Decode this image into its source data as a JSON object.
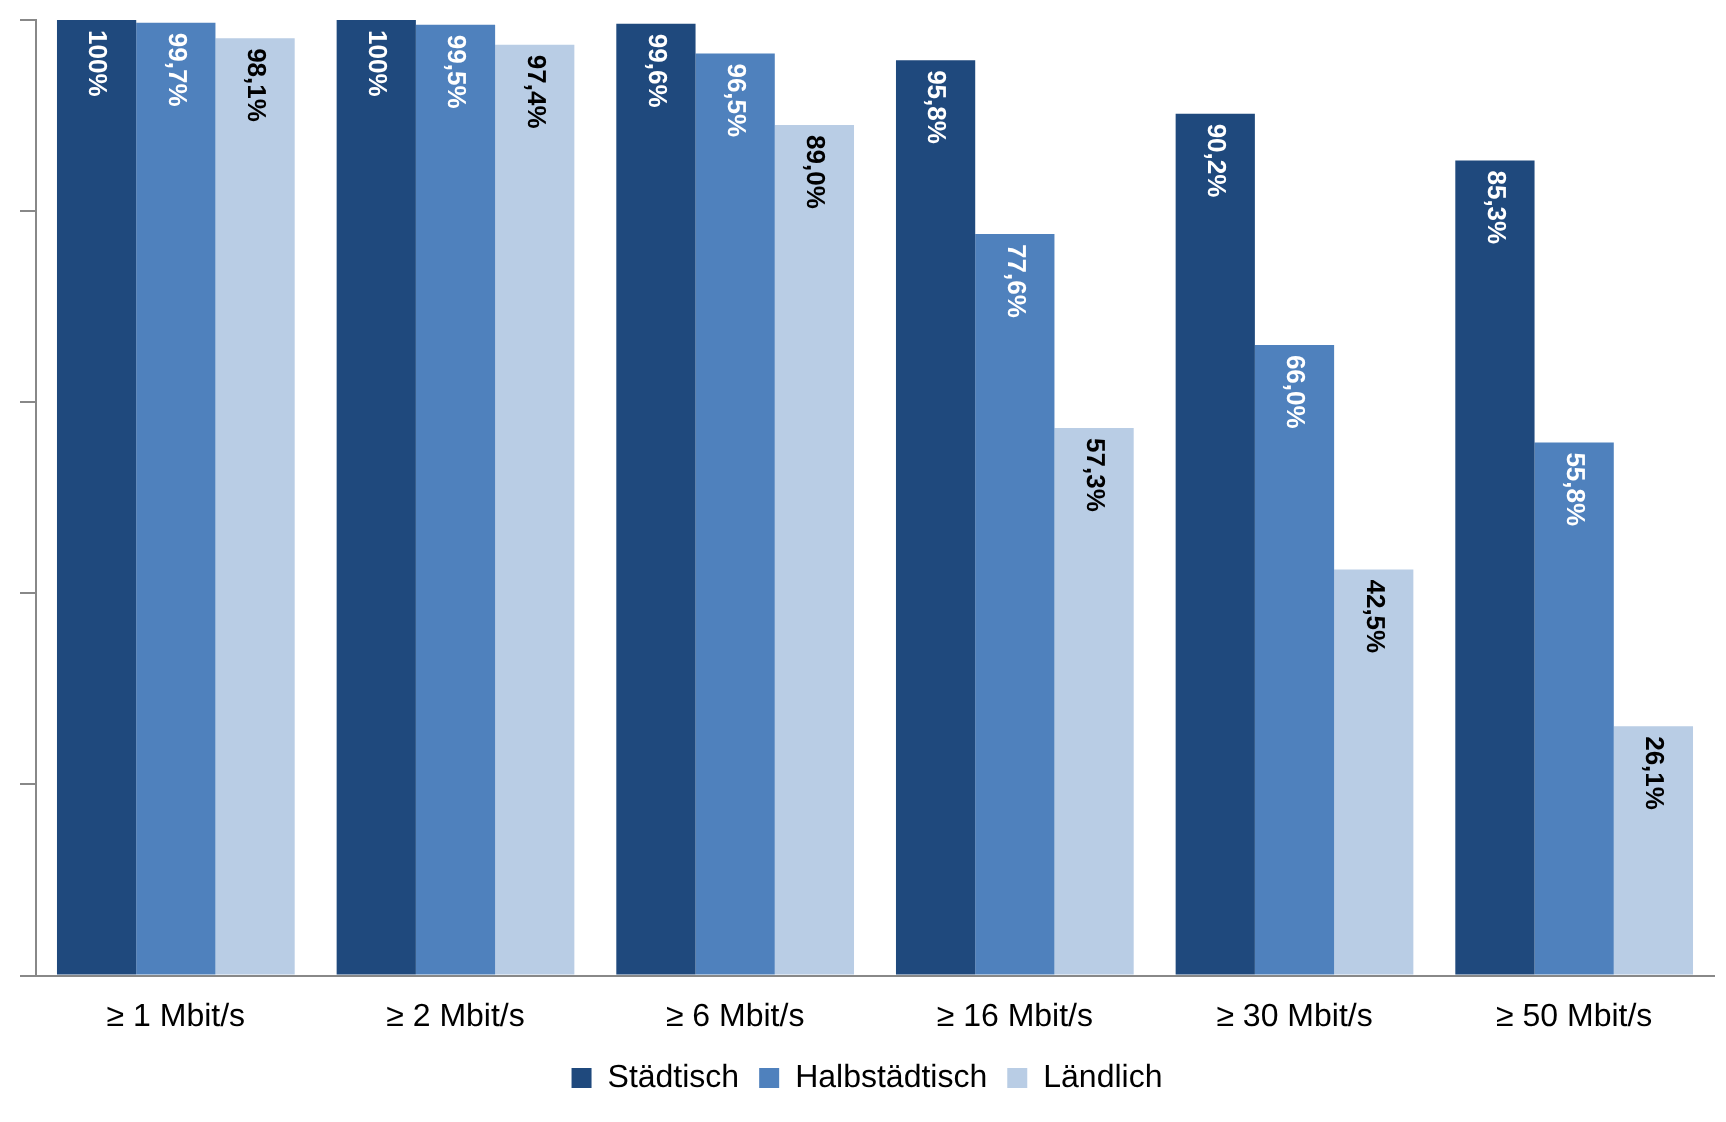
{
  "chart_data": {
    "type": "bar",
    "categories": [
      "≥ 1 Mbit/s",
      "≥ 2 Mbit/s",
      "≥ 6 Mbit/s",
      "≥ 16 Mbit/s",
      "≥ 30 Mbit/s",
      "≥ 50 Mbit/s"
    ],
    "series": [
      {
        "name": "Städtisch",
        "color": "#1f497d",
        "values": [
          100,
          100,
          99.6,
          95.8,
          90.2,
          85.3
        ],
        "value_labels": [
          "100%",
          "100%",
          "99,6%",
          "95,8%",
          "90,2%",
          "85,3%"
        ]
      },
      {
        "name": "Halbstädtisch",
        "color": "#4f81bd",
        "values": [
          99.7,
          99.5,
          96.5,
          77.6,
          66.0,
          55.8
        ],
        "value_labels": [
          "99,7%",
          "99,5%",
          "96,5%",
          "77,6%",
          "66,0%",
          "55,8%"
        ]
      },
      {
        "name": "Ländlich",
        "color": "#b9cde5",
        "values": [
          98.1,
          97.4,
          89.0,
          57.3,
          42.5,
          26.1
        ],
        "value_labels": [
          "98,1%",
          "97,4%",
          "89,0%",
          "57,3%",
          "42,5%",
          "26,1%"
        ]
      }
    ],
    "ylim": [
      0,
      100
    ],
    "yticks": [
      {
        "value": 0,
        "label": null
      },
      {
        "value": 20,
        "label": null
      },
      {
        "value": 40,
        "label": null
      },
      {
        "value": 60,
        "label": null
      },
      {
        "value": 80,
        "label": null
      },
      {
        "value": 100,
        "label": null
      }
    ],
    "grid": false,
    "legend": "bottom",
    "tick_labels": "x"
  }
}
